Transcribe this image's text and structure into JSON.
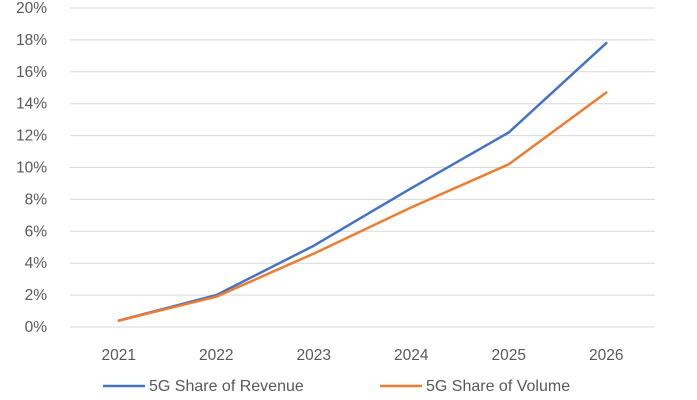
{
  "chart_data": {
    "type": "line",
    "title": "",
    "xlabel": "",
    "ylabel": "",
    "x": [
      "2021",
      "2022",
      "2023",
      "2024",
      "2025",
      "2026"
    ],
    "ylim": [
      0,
      20
    ],
    "y_ticks": [
      "0%",
      "2%",
      "4%",
      "6%",
      "8%",
      "10%",
      "12%",
      "14%",
      "16%",
      "18%",
      "20%"
    ],
    "y_unit": "percent",
    "grid": true,
    "legend_position": "bottom",
    "series": [
      {
        "name": "5G Share of Revenue",
        "color": "#4472C4",
        "values": [
          0.4,
          2.0,
          5.1,
          8.7,
          12.2,
          17.8
        ]
      },
      {
        "name": "5G Share of Volume",
        "color": "#ED7D31",
        "values": [
          0.4,
          1.9,
          4.6,
          7.5,
          10.2,
          14.7
        ]
      }
    ]
  },
  "colors": {
    "grid": "#d9d9d9",
    "tick_text": "#595959"
  }
}
